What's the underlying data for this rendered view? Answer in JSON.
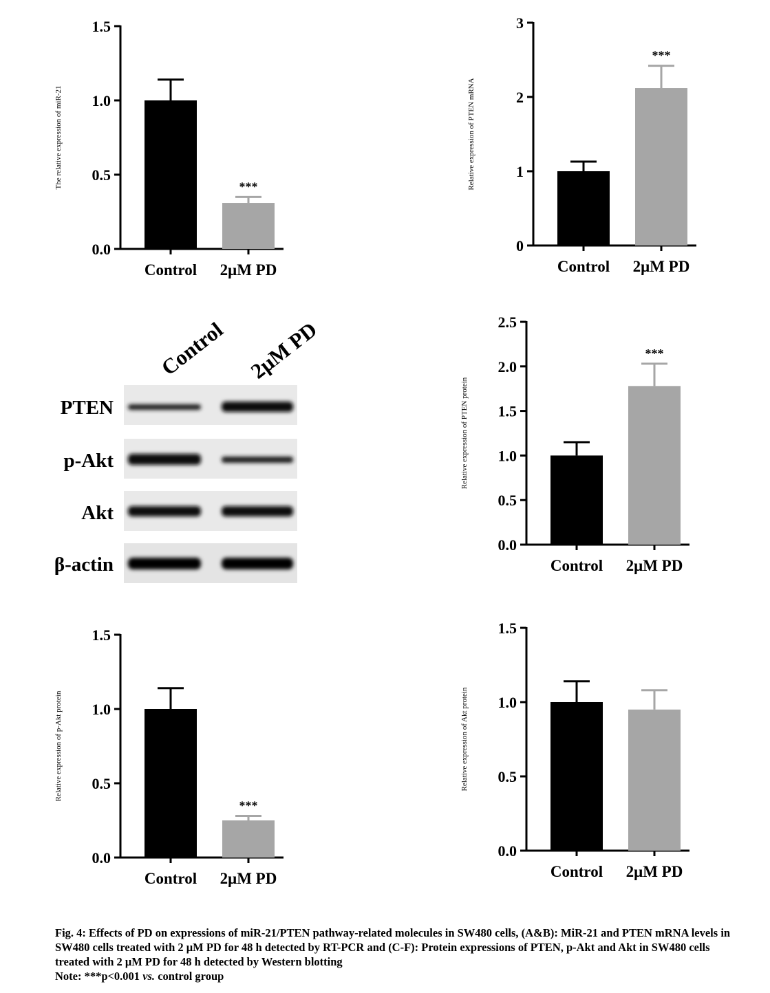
{
  "charts": [
    {
      "id": "A",
      "ylabel": "The relative expression of miR-21",
      "ylim": [
        0,
        1.5
      ],
      "ticks": [
        "0.0",
        "0.5",
        "1.0",
        "1.5"
      ],
      "tick_values": [
        0,
        0.5,
        1.0,
        1.5
      ],
      "categories": [
        "Control",
        "2μM PD"
      ],
      "values": [
        1.0,
        0.31
      ],
      "errors": [
        0.14,
        0.04
      ],
      "significance": [
        "",
        "***"
      ],
      "colors": [
        "#000000",
        "#a6a6a6"
      ]
    },
    {
      "id": "B",
      "ylabel": "Relative expression of PTEN mRNA",
      "ylim": [
        0,
        3
      ],
      "ticks": [
        "0",
        "1",
        "2",
        "3"
      ],
      "tick_values": [
        0,
        1,
        2,
        3
      ],
      "categories": [
        "Control",
        "2μM PD"
      ],
      "values": [
        1.0,
        2.12
      ],
      "errors": [
        0.13,
        0.3
      ],
      "significance": [
        "",
        "***"
      ],
      "colors": [
        "#000000",
        "#a6a6a6"
      ]
    },
    {
      "id": "D",
      "ylabel": "Relative expression of PTEN protein",
      "ylim": [
        0,
        2.5
      ],
      "ticks": [
        "0.0",
        "0.5",
        "1.0",
        "1.5",
        "2.0",
        "2.5"
      ],
      "tick_values": [
        0,
        0.5,
        1.0,
        1.5,
        2.0,
        2.5
      ],
      "categories": [
        "Control",
        "2μM PD"
      ],
      "values": [
        1.0,
        1.78
      ],
      "errors": [
        0.15,
        0.25
      ],
      "significance": [
        "",
        "***"
      ],
      "colors": [
        "#000000",
        "#a6a6a6"
      ]
    },
    {
      "id": "E",
      "ylabel": "Relative expression of p-Akt protein",
      "ylim": [
        0,
        1.5
      ],
      "ticks": [
        "0.0",
        "0.5",
        "1.0",
        "1.5"
      ],
      "tick_values": [
        0,
        0.5,
        1.0,
        1.5
      ],
      "categories": [
        "Control",
        "2μM PD"
      ],
      "values": [
        1.0,
        0.25
      ],
      "errors": [
        0.14,
        0.03
      ],
      "significance": [
        "",
        "***"
      ],
      "colors": [
        "#000000",
        "#a6a6a6"
      ]
    },
    {
      "id": "F",
      "ylabel": "Relative expression of Akt protein",
      "ylim": [
        0,
        1.5
      ],
      "ticks": [
        "0.0",
        "0.5",
        "1.0",
        "1.5"
      ],
      "tick_values": [
        0,
        0.5,
        1.0,
        1.5
      ],
      "categories": [
        "Control",
        "2μM PD"
      ],
      "values": [
        1.0,
        0.95
      ],
      "errors": [
        0.14,
        0.13
      ],
      "significance": [
        "",
        ""
      ],
      "colors": [
        "#000000",
        "#a6a6a6"
      ]
    }
  ],
  "chart_data": [
    {
      "type": "bar",
      "ylabel": "The relative expression of miR-21",
      "ylim": [
        0,
        1.5
      ],
      "categories": [
        "Control",
        "2μM PD"
      ],
      "values": [
        1.0,
        0.31
      ]
    },
    {
      "type": "bar",
      "ylabel": "Relative expression of PTEN mRNA",
      "ylim": [
        0,
        3
      ],
      "categories": [
        "Control",
        "2μM PD"
      ],
      "values": [
        1.0,
        2.12
      ]
    },
    {
      "type": "bar",
      "ylabel": "Relative expression of PTEN protein",
      "ylim": [
        0,
        2.5
      ],
      "categories": [
        "Control",
        "2μM PD"
      ],
      "values": [
        1.0,
        1.78
      ]
    },
    {
      "type": "bar",
      "ylabel": "Relative expression of p-Akt protein",
      "ylim": [
        0,
        1.5
      ],
      "categories": [
        "Control",
        "2μM PD"
      ],
      "values": [
        1.0,
        0.25
      ]
    },
    {
      "type": "bar",
      "ylabel": "Relative expression of Akt protein",
      "ylim": [
        0,
        1.5
      ],
      "categories": [
        "Control",
        "2μM PD"
      ],
      "values": [
        1.0,
        0.95
      ]
    }
  ],
  "blot": {
    "lanes": [
      "Control",
      "2μM PD"
    ],
    "bands": [
      "PTEN",
      "p-Akt",
      "Akt",
      "β-actin"
    ]
  },
  "caption": {
    "line1": "Fig. 4: Effects of PD on expressions of miR-21/PTEN pathway-related molecules in SW480 cells, (A&B): MiR-21 and PTEN mRNA levels in SW480 cells treated with 2 μM PD for 48 h detected by RT-PCR and (C-F): Protein expressions of PTEN, p-Akt and Akt in SW480 cells treated with 2 μM PD for 48 h detected by Western blotting",
    "note_prefix": "Note: ***p<0.001 ",
    "note_vs": "vs.",
    "note_suffix": " control group"
  }
}
